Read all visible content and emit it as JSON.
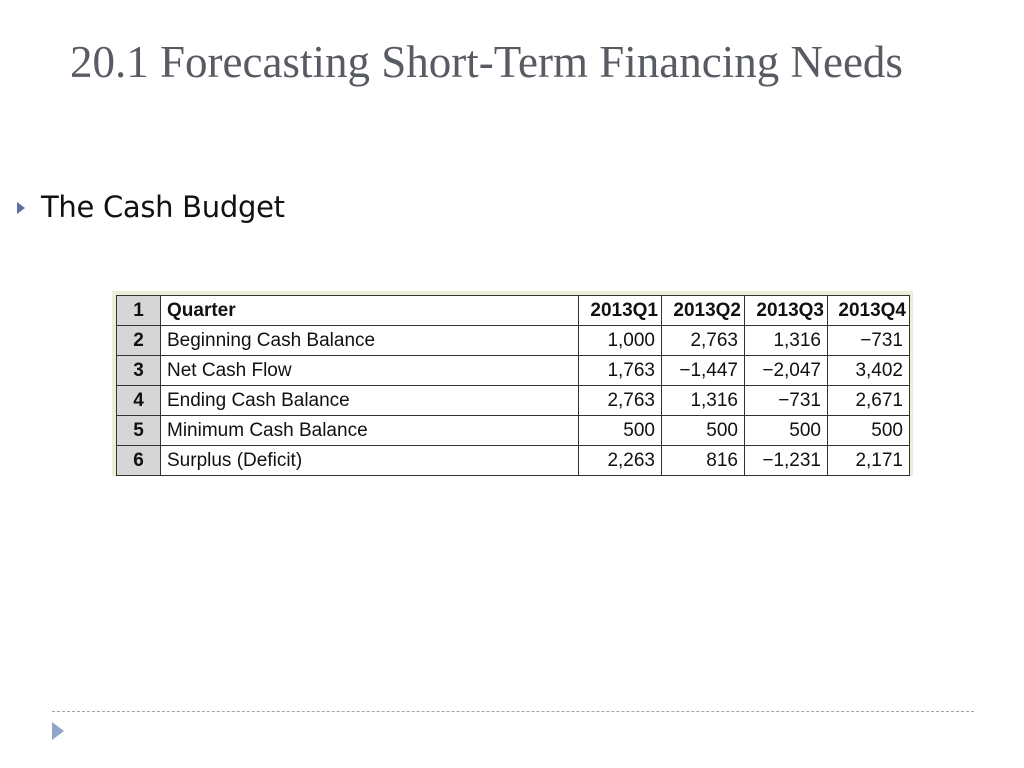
{
  "slide": {
    "title": "20.1 Forecasting Short-Term Financing Needs",
    "bullet": "The Cash Budget"
  },
  "table": {
    "header": {
      "row_number": "1",
      "label": "Quarter",
      "quarters": [
        "2013Q1",
        "2013Q2",
        "2013Q3",
        "2013Q4"
      ]
    },
    "rows": [
      {
        "num": "2",
        "label": "Beginning Cash Balance",
        "values": [
          "1,000",
          "2,763",
          "1,316",
          "−731"
        ]
      },
      {
        "num": "3",
        "label": "Net Cash Flow",
        "values": [
          "1,763",
          "−1,447",
          "−2,047",
          "3,402"
        ]
      },
      {
        "num": "4",
        "label": "Ending Cash Balance",
        "values": [
          "2,763",
          "1,316",
          "−731",
          "2,671"
        ]
      },
      {
        "num": "5",
        "label": "Minimum Cash Balance",
        "values": [
          "500",
          "500",
          "500",
          "500"
        ]
      },
      {
        "num": "6",
        "label": "Surplus (Deficit)",
        "values": [
          "2,263",
          "816",
          "−1,231",
          "2,171"
        ]
      }
    ]
  },
  "colors": {
    "title": "#595b63",
    "bullet_icon": "#5b6fa0",
    "table_background": "#e9efd9",
    "row_number_fill": "#d6d6d6",
    "footer_line": "#9aa7b5"
  },
  "icons": {
    "bullet": "triangle-right-icon",
    "footer": "triangle-right-icon"
  }
}
